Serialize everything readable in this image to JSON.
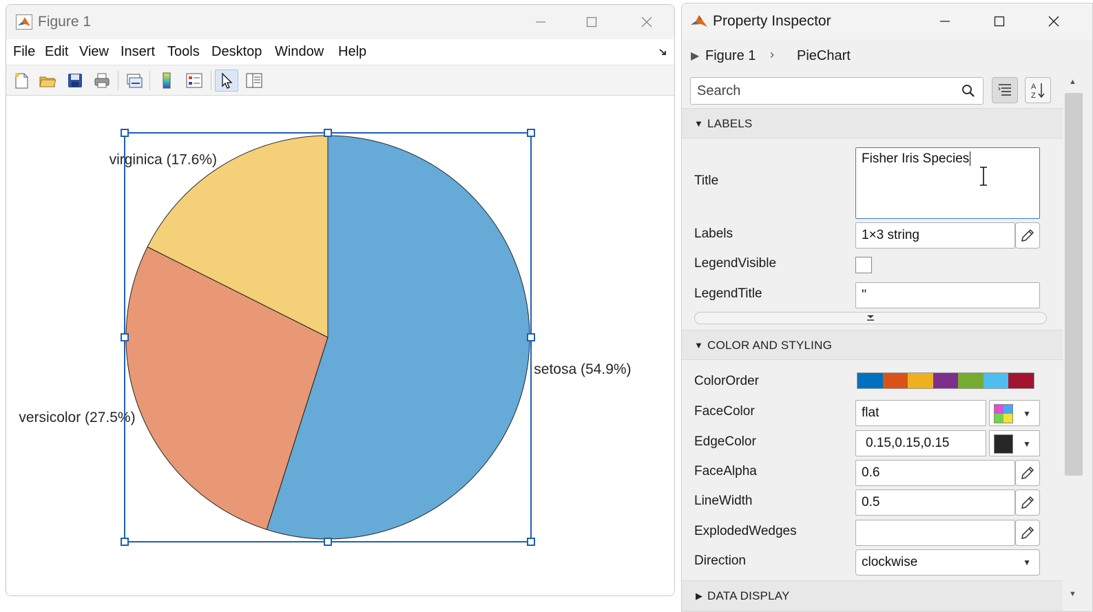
{
  "figure": {
    "title": "Figure 1",
    "menu": [
      "File",
      "Edit",
      "View",
      "Insert",
      "Tools",
      "Desktop",
      "Window",
      "Help"
    ],
    "toolbar_icons": [
      "new-figure-icon",
      "open-folder-icon",
      "save-icon",
      "print-icon",
      "link-plot-icon",
      "colorbar-icon",
      "legend-icon",
      "edit-plot-arrow-icon",
      "property-inspector-icon"
    ]
  },
  "chart_data": {
    "type": "pie",
    "labels": [
      "setosa (54.9%)",
      "versicolor (27.5%)",
      "virginica (17.6%)"
    ],
    "categories": [
      "setosa",
      "versicolor",
      "virginica"
    ],
    "values": [
      54.9,
      27.5,
      17.6
    ],
    "direction": "clockwise",
    "face_alpha": 0.6,
    "edge_color": "#262626",
    "colors": [
      "#0072BD",
      "#D95319",
      "#EDB120"
    ],
    "title": ""
  },
  "inspector": {
    "title": "Property Inspector",
    "breadcrumb": [
      "Figure 1",
      "PieChart"
    ],
    "search_placeholder": "Search",
    "labels_group": "LABELS",
    "color_group": "COLOR AND STYLING",
    "data_group": "DATA DISPLAY",
    "props": {
      "title_label": "Title",
      "title_value": "Fisher Iris Species",
      "labels_label": "Labels",
      "labels_value": "1×3 string",
      "legend_visible_label": "LegendVisible",
      "legend_title_label": "LegendTitle",
      "legend_title_value": "''",
      "color_order_label": "ColorOrder",
      "face_color_label": "FaceColor",
      "face_color_value": "flat",
      "edge_color_label": "EdgeColor",
      "edge_color_value": "0.15,0.15,0.15",
      "face_alpha_label": "FaceAlpha",
      "face_alpha_value": "0.6",
      "line_width_label": "LineWidth",
      "line_width_value": "0.5",
      "exploded_label": "ExplodedWedges",
      "exploded_value": "",
      "direction_label": "Direction",
      "direction_value": "clockwise"
    },
    "color_order": [
      "#0072BD",
      "#D95319",
      "#EDB120",
      "#7E2F8E",
      "#77AC30",
      "#4DBEEE",
      "#A2142F"
    ],
    "edge_swatch": "#262626"
  }
}
